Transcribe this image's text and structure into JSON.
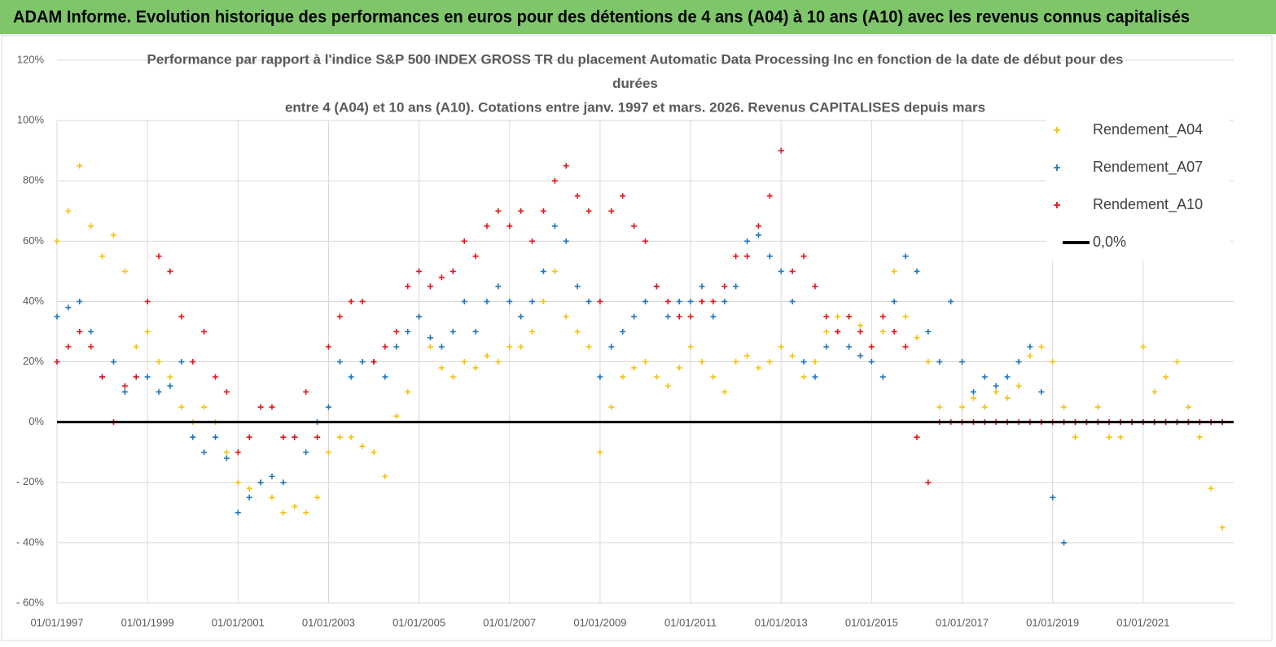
{
  "header": {
    "title": "ADAM Informe. Evolution historique des performances en euros pour des détentions de 4 ans (A04) à 10 ans (A10) avec les revenus connus capitalisés"
  },
  "chart_data": {
    "type": "scatter",
    "title": [
      "Performance par rapport à l'indice S&P  500 INDEX GROSS TR  du placement Automatic Data Processing Inc en fonction de la date de  début pour des",
      "durées",
      "entre 4 (A04) et 10 ans (A10).  Cotations entre janv. 1997 et mars. 2026.  Revenus CAPITALISES depuis mars"
    ],
    "x": [
      1997,
      1997.25,
      1997.5,
      1997.75,
      1998,
      1998.25,
      1998.5,
      1998.75,
      1999,
      1999.25,
      1999.5,
      1999.75,
      2000,
      2000.25,
      2000.5,
      2000.75,
      2001,
      2001.25,
      2001.5,
      2001.75,
      2002,
      2002.25,
      2002.5,
      2002.75,
      2003,
      2003.25,
      2003.5,
      2003.75,
      2004,
      2004.25,
      2004.5,
      2004.75,
      2005,
      2005.25,
      2005.5,
      2005.75,
      2006,
      2006.25,
      2006.5,
      2006.75,
      2007,
      2007.25,
      2007.5,
      2007.75,
      2008,
      2008.25,
      2008.5,
      2008.75,
      2009,
      2009.25,
      2009.5,
      2009.75,
      2010,
      2010.25,
      2010.5,
      2010.75,
      2011,
      2011.25,
      2011.5,
      2011.75,
      2012,
      2012.25,
      2012.5,
      2012.75,
      2013,
      2013.25,
      2013.5,
      2013.75,
      2014,
      2014.25,
      2014.5,
      2014.75,
      2015,
      2015.25,
      2015.5,
      2015.75,
      2016,
      2016.25,
      2016.5,
      2016.75,
      2017,
      2017.25,
      2017.5,
      2017.75,
      2018,
      2018.25,
      2018.5,
      2018.75,
      2019,
      2019.25,
      2019.5,
      2019.75,
      2020,
      2020.25,
      2020.5,
      2020.75,
      2021,
      2021.25,
      2021.5,
      2021.75,
      2022,
      2022.25,
      2022.5,
      2022.75
    ],
    "series": [
      {
        "name": "Rendement_A04",
        "color": "#f5c20f",
        "values": [
          60,
          70,
          85,
          65,
          55,
          62,
          50,
          25,
          30,
          20,
          15,
          5,
          0,
          5,
          0,
          -10,
          -20,
          -22,
          -20,
          -25,
          -30,
          -28,
          -30,
          -25,
          -10,
          -5,
          -5,
          -8,
          -10,
          -18,
          2,
          10,
          35,
          25,
          18,
          15,
          20,
          18,
          22,
          20,
          25,
          25,
          30,
          40,
          50,
          35,
          30,
          25,
          -10,
          5,
          15,
          18,
          20,
          15,
          12,
          18,
          25,
          20,
          15,
          10,
          20,
          22,
          18,
          20,
          25,
          22,
          15,
          20,
          30,
          35,
          35,
          32,
          25,
          30,
          50,
          35,
          28,
          20,
          5,
          0,
          5,
          8,
          5,
          10,
          8,
          12,
          22,
          25,
          20,
          5,
          -5,
          0,
          5,
          -5,
          -5,
          0,
          25,
          10,
          15,
          20,
          5,
          -5,
          -22,
          -35
        ]
      },
      {
        "name": "Rendement_A07",
        "color": "#1f77c0",
        "values": [
          35,
          38,
          40,
          30,
          15,
          20,
          10,
          15,
          15,
          10,
          12,
          20,
          -5,
          -10,
          -5,
          -12,
          -30,
          -25,
          -20,
          -18,
          -20,
          -5,
          -10,
          0,
          5,
          20,
          15,
          20,
          20,
          15,
          25,
          30,
          35,
          28,
          25,
          30,
          40,
          30,
          40,
          45,
          40,
          35,
          40,
          50,
          65,
          60,
          45,
          40,
          15,
          25,
          30,
          35,
          40,
          45,
          35,
          40,
          40,
          45,
          35,
          40,
          45,
          60,
          62,
          55,
          50,
          40,
          20,
          15,
          25,
          30,
          25,
          22,
          20,
          15,
          40,
          55,
          50,
          30,
          20,
          40,
          20,
          10,
          15,
          12,
          15,
          20,
          25,
          10,
          -25,
          -40,
          0,
          0,
          0,
          0,
          0,
          0,
          0,
          0,
          0,
          0,
          0,
          0,
          0,
          0
        ]
      },
      {
        "name": "Rendement_A10",
        "color": "#e8141a",
        "values": [
          20,
          25,
          30,
          25,
          15,
          0,
          12,
          15,
          40,
          55,
          50,
          35,
          20,
          30,
          15,
          10,
          -10,
          -5,
          5,
          5,
          -5,
          -5,
          10,
          -5,
          25,
          35,
          40,
          40,
          20,
          25,
          30,
          45,
          50,
          45,
          48,
          50,
          60,
          55,
          65,
          70,
          65,
          70,
          60,
          70,
          80,
          85,
          75,
          70,
          40,
          70,
          75,
          65,
          60,
          45,
          40,
          35,
          35,
          40,
          40,
          45,
          55,
          55,
          65,
          75,
          90,
          50,
          55,
          45,
          35,
          30,
          35,
          30,
          25,
          35,
          30,
          25,
          -5,
          -20,
          0,
          0,
          0,
          0,
          0,
          0,
          0,
          0,
          0,
          0,
          0,
          0,
          0,
          0,
          0,
          0,
          0,
          0,
          0,
          0,
          0,
          0,
          0,
          0,
          0,
          0
        ]
      }
    ],
    "hline": {
      "name": "0,0%",
      "value": 0,
      "color": "#000000"
    },
    "xlim": [
      1997,
      2023
    ],
    "xticks": [
      {
        "value": 1997,
        "label": "01/01/1997"
      },
      {
        "value": 1999,
        "label": "01/01/1999"
      },
      {
        "value": 2001,
        "label": "01/01/2001"
      },
      {
        "value": 2003,
        "label": "01/01/2003"
      },
      {
        "value": 2005,
        "label": "01/01/2005"
      },
      {
        "value": 2007,
        "label": "01/01/2007"
      },
      {
        "value": 2009,
        "label": "01/01/2009"
      },
      {
        "value": 2011,
        "label": "01/01/2011"
      },
      {
        "value": 2013,
        "label": "01/01/2013"
      },
      {
        "value": 2015,
        "label": "01/01/2015"
      },
      {
        "value": 2017,
        "label": "01/01/2017"
      },
      {
        "value": 2019,
        "label": "01/01/2019"
      },
      {
        "value": 2021,
        "label": "01/01/2021"
      }
    ],
    "ylim": [
      -60,
      120
    ],
    "yticks": [
      {
        "value": -60,
        "label": "- 60%"
      },
      {
        "value": -40,
        "label": "- 40%"
      },
      {
        "value": -20,
        "label": "- 20%"
      },
      {
        "value": 0,
        "label": "0%"
      },
      {
        "value": 20,
        "label": "20%"
      },
      {
        "value": 40,
        "label": "40%"
      },
      {
        "value": 60,
        "label": "60%"
      },
      {
        "value": 80,
        "label": "80%"
      },
      {
        "value": 100,
        "label": "100%"
      },
      {
        "value": 120,
        "label": "120%"
      }
    ],
    "grid": true
  }
}
